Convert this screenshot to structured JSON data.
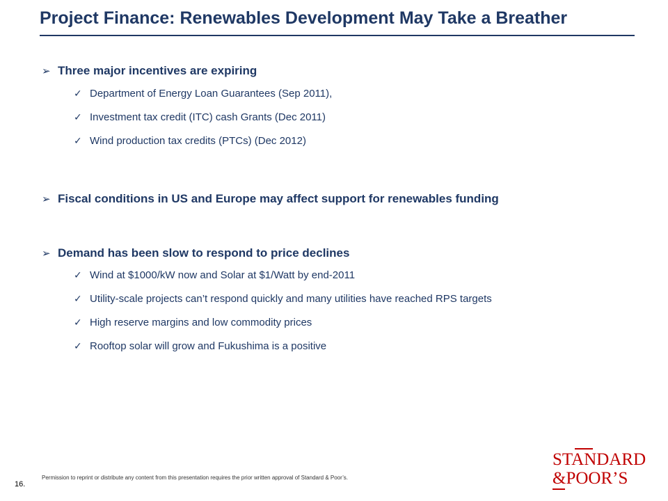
{
  "slide": {
    "title": "Project Finance: Renewables Development May Take a Breather",
    "page_number": "16.",
    "footer_note": "Permission to reprint or distribute any content from this presentation requires the prior written approval of Standard & Poor’s."
  },
  "bullets": [
    {
      "heading": "Three major incentives are expiring",
      "items": [
        "Department of Energy Loan Guarantees (Sep 2011),",
        "Investment tax credit (ITC) cash Grants (Dec 2011)",
        "Wind production tax credits (PTCs) (Dec 2012)"
      ]
    },
    {
      "heading": "Fiscal conditions in US and Europe may affect support for renewables funding",
      "items": []
    },
    {
      "heading": "Demand has been slow to respond to price declines",
      "items": [
        "Wind at $1000/kW now and Solar at $1/Watt by end-2011",
        "Utility-scale projects can’t respond quickly and many utilities have reached RPS targets",
        "High reserve margins and low commodity prices",
        "Rooftop solar will grow and Fukushima is a positive"
      ]
    }
  ],
  "logo": {
    "line1": "STANDARD",
    "line2": "&POOR’S"
  },
  "colors": {
    "title": "#1f3864",
    "logo": "#c00000"
  },
  "icons": {
    "bullet": "arrow-bullet-icon",
    "subbullet": "checkmark-icon"
  }
}
